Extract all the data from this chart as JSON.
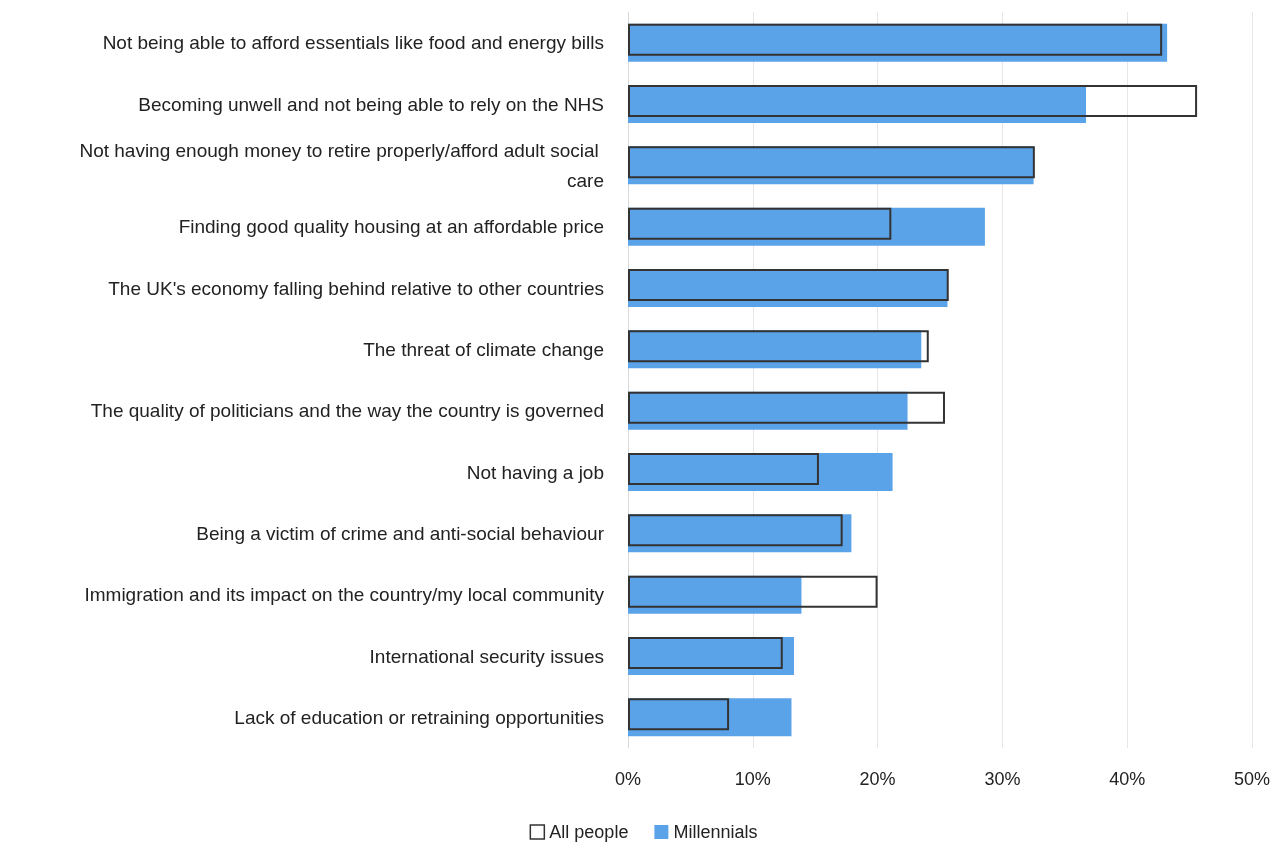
{
  "chart_data": {
    "type": "bar",
    "orientation": "horizontal",
    "categories": [
      "Not being able to afford essentials like food and energy bills",
      "Becoming unwell and not being able to rely on the NHS",
      "Not having enough money to retire properly/afford adult social care",
      "Finding good quality housing at an affordable price",
      "The UK's economy falling behind relative to other countries",
      "The threat of climate change",
      "The quality of politicians and the way the country is governed",
      "Not having a job",
      "Being a victim of crime and anti-social behaviour",
      "Immigration and its impact on the country/my local community",
      "International security issues",
      "Lack of education or retraining opportunities"
    ],
    "series": [
      {
        "name": "All people",
        "color": "#333333",
        "values": [
          42.8,
          45.6,
          32.6,
          21.1,
          25.7,
          24.1,
          25.4,
          15.3,
          17.2,
          20.0,
          12.4,
          8.1
        ]
      },
      {
        "name": "Millennials",
        "color": "#5ba3e8",
        "values": [
          43.2,
          36.7,
          32.5,
          28.6,
          25.6,
          23.5,
          22.4,
          21.2,
          17.9,
          13.9,
          13.3,
          13.1
        ]
      }
    ],
    "xlim": [
      0,
      50
    ],
    "xticks": [
      {
        "value": 0,
        "label": "0%"
      },
      {
        "value": 10,
        "label": "10%"
      },
      {
        "value": 20,
        "label": "20%"
      },
      {
        "value": 30,
        "label": "30%"
      },
      {
        "value": 40,
        "label": "40%"
      },
      {
        "value": 50,
        "label": "50%"
      }
    ],
    "grid": "x",
    "legend": "bottom"
  }
}
